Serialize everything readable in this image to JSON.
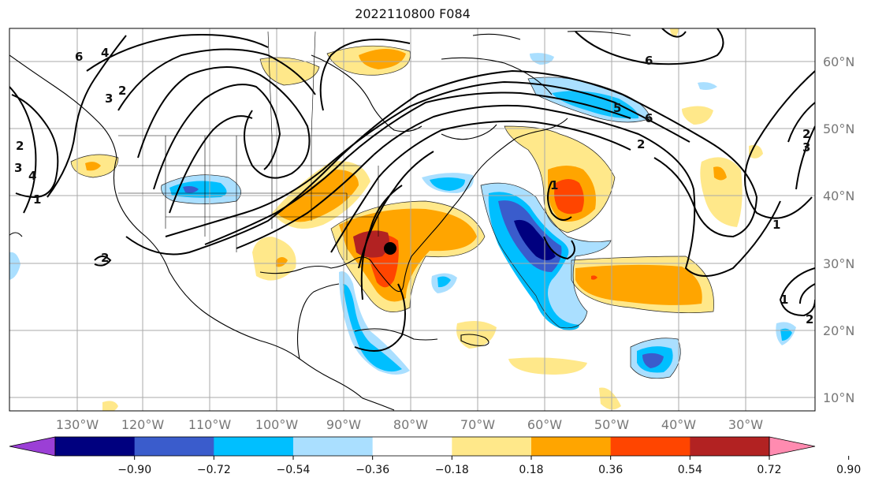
{
  "title": "2022110800 F084",
  "lon_labels": [
    "130°W",
    "120°W",
    "110°W",
    "100°W",
    "90°W",
    "80°W",
    "70°W",
    "60°W",
    "50°W",
    "40°W",
    "30°W"
  ],
  "lat_labels": [
    "60°N",
    "50°N",
    "40°N",
    "30°N",
    "20°N",
    "10°N"
  ],
  "colorbar": {
    "ticks": [
      "−0.90",
      "−0.72",
      "−0.54",
      "−0.36",
      "−0.18",
      "0.18",
      "0.36",
      "0.54",
      "0.72",
      "0.90"
    ],
    "colors": [
      "#9b3fd6",
      "#00007f",
      "#3a5ccc",
      "#00bfff",
      "#aadfff",
      "#ffffff",
      "#ffe88a",
      "#ffa500",
      "#ff4500",
      "#b22222",
      "#ff8bb0"
    ]
  },
  "contour_labels": [
    "6",
    "4",
    "3",
    "2",
    "1",
    "2",
    "3",
    "4",
    "2",
    "1",
    "5",
    "6",
    "2",
    "6",
    "1",
    "2",
    "3",
    "1",
    "2"
  ],
  "marker": "storm-center-dot"
}
